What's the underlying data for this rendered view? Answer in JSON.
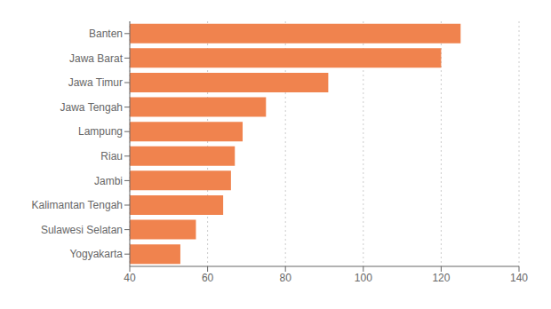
{
  "chart_data": {
    "type": "bar",
    "orientation": "horizontal",
    "categories": [
      "Yogyakarta",
      "Sulawesi Selatan",
      "Kalimantan Tengah",
      "Jambi",
      "Riau",
      "Lampung",
      "Jawa Tengah",
      "Jawa Timur",
      "Jawa Barat",
      "Banten"
    ],
    "values": [
      53,
      57,
      64,
      66,
      67,
      69,
      75,
      91,
      120,
      125
    ],
    "color": "#f0834e",
    "xlim": [
      40,
      140
    ],
    "xticks": [
      40,
      60,
      80,
      100,
      120,
      140
    ],
    "grid": true
  }
}
